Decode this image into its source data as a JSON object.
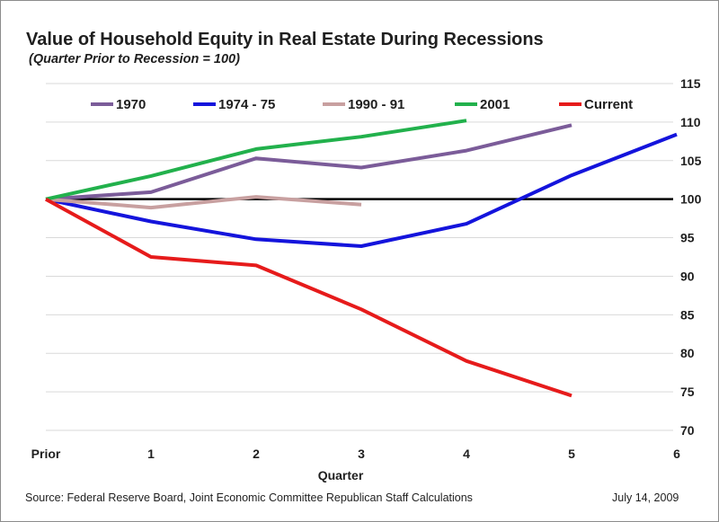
{
  "header": {
    "title": "Value of Household Equity in Real Estate During Recessions",
    "subtitle": "(Quarter Prior to Recession = 100)"
  },
  "footer": {
    "source": "Source:  Federal Reserve Board, Joint Economic Committee Republican Staff Calculations",
    "date": "July 14, 2009"
  },
  "colors": {
    "gridline": "#d9d9d9",
    "baseline": "#000000"
  },
  "chart_data": {
    "type": "line",
    "title": "Value of Household Equity in Real Estate During Recessions",
    "subtitle": "(Quarter Prior to Recession = 100)",
    "xlabel": "Quarter",
    "ylabel": "",
    "x": [
      "Prior",
      "1",
      "2",
      "3",
      "4",
      "5",
      "6"
    ],
    "ylim": [
      70,
      115
    ],
    "yticks": [
      70,
      75,
      80,
      85,
      90,
      95,
      100,
      105,
      110,
      115
    ],
    "y_axis_side": "right",
    "grid": true,
    "reference_line": 100,
    "legend_position": "top",
    "series": [
      {
        "name": "1970",
        "color": "#7b5c99",
        "values": [
          100,
          100.9,
          105.3,
          104.1,
          106.3,
          109.6,
          null
        ]
      },
      {
        "name": "1974 - 75",
        "color": "#1414dc",
        "values": [
          100,
          97.1,
          94.8,
          93.9,
          96.8,
          103.1,
          108.4
        ]
      },
      {
        "name": "1990 - 91",
        "color": "#c8a0a0",
        "values": [
          100,
          98.9,
          100.3,
          99.3,
          null,
          null,
          null
        ]
      },
      {
        "name": "2001",
        "color": "#22b14c",
        "values": [
          100,
          103.0,
          106.5,
          108.1,
          110.2,
          null,
          null
        ]
      },
      {
        "name": "Current",
        "color": "#e61b1b",
        "values": [
          100,
          92.5,
          91.4,
          85.7,
          79.0,
          74.5,
          null
        ]
      }
    ]
  }
}
